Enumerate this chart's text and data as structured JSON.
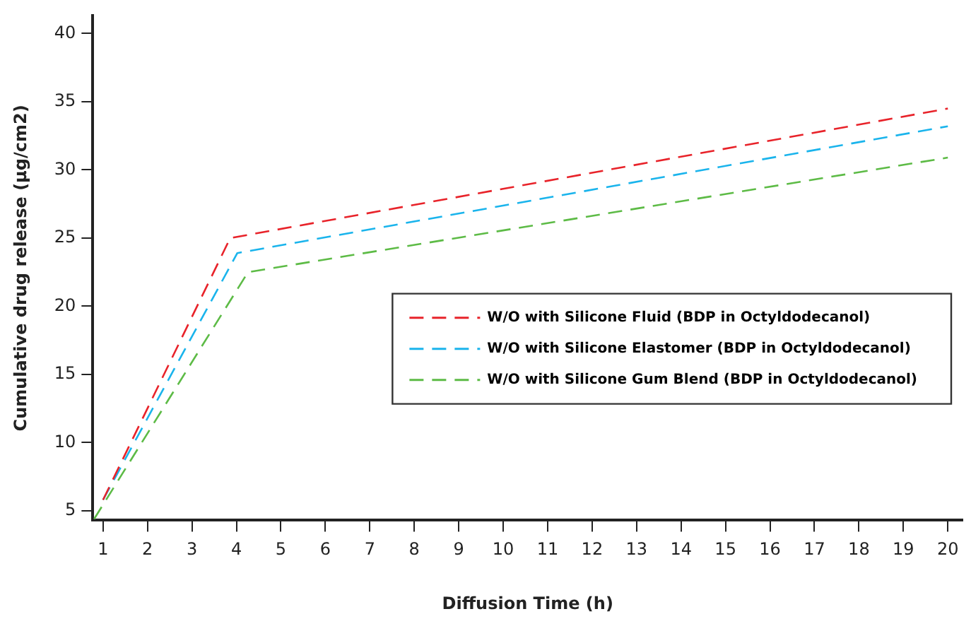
{
  "chart_data": {
    "type": "line",
    "xlabel": "Diffusion Time (h)",
    "ylabel": "Cumulative drug release (µg/cm2)",
    "xlim": [
      0.77,
      20.33
    ],
    "xticks": [
      1,
      2,
      3,
      4,
      5,
      6,
      7,
      8,
      9,
      10,
      11,
      12,
      13,
      14,
      15,
      16,
      17,
      18,
      19,
      20
    ],
    "ylim": [
      4.3,
      41.3
    ],
    "yticks": [
      5,
      10,
      15,
      20,
      25,
      30,
      35,
      40
    ],
    "series": [
      {
        "name": "W/O with Silicone Fluid (BDP in Octyldodecanol)",
        "color": "#e8232a",
        "x": [
          1,
          3.86,
          20
        ],
        "values": [
          5.8,
          25,
          34.5
        ]
      },
      {
        "name": "W/O with Silicone Elastomer (BDP in Octyldodecanol)",
        "color": "#1ab4ec",
        "x": [
          1,
          4.02,
          20
        ],
        "values": [
          5.8,
          23.9,
          33.2
        ]
      },
      {
        "name": "W/O with Silicone Gum Blend (BDP in Octyldodecanol)",
        "color": "#5dbb46",
        "x": [
          0.8,
          4.26,
          20
        ],
        "values": [
          4.4,
          22.5,
          30.9
        ]
      }
    ],
    "grid": false,
    "legend": "right",
    "marker": "none",
    "line_style": "dashed"
  }
}
